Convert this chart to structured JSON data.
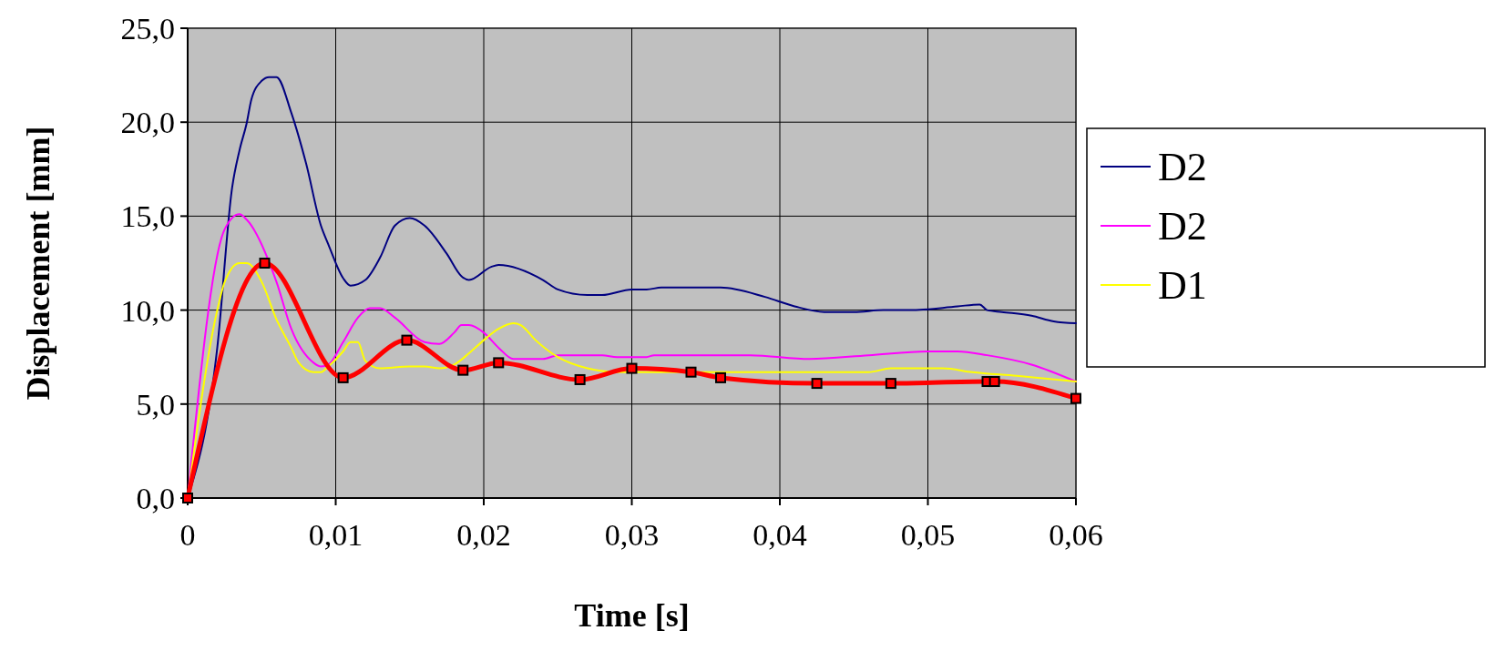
{
  "chart_data": {
    "type": "line",
    "xlabel": "Time [s]",
    "ylabel": "Displacement [mm]",
    "xlim": [
      0,
      0.06
    ],
    "xticks": [
      0,
      {
        "value": 0.01,
        "label": "0,01"
      },
      {
        "value": 0.02,
        "label": "0,02"
      },
      {
        "value": 0.03,
        "label": "0,03"
      },
      {
        "value": 0.04,
        "label": "0,04"
      },
      {
        "value": 0.05,
        "label": "0,05"
      },
      {
        "value": 0.06,
        "label": "0,06"
      }
    ],
    "ylim": [
      0,
      25
    ],
    "yticks": [
      {
        "value": 0,
        "label": "0,0"
      },
      {
        "value": 5,
        "label": "5,0"
      },
      {
        "value": 10,
        "label": "10,0"
      },
      {
        "value": 15,
        "label": "15,0"
      },
      {
        "value": 20,
        "label": "20,0"
      },
      {
        "value": 25,
        "label": "25,0"
      }
    ],
    "grid": true,
    "legend": "right",
    "marker": "none",
    "series": [
      {
        "name": "D2",
        "color": "#000080",
        "x": [
          0,
          0.002,
          0.003,
          0.0035,
          0.004,
          0.0043,
          0.005,
          0.0055,
          0.006,
          0.007,
          0.008,
          0.009,
          0.0095,
          0.0105,
          0.011,
          0.012,
          0.013,
          0.014,
          0.015,
          0.016,
          0.0175,
          0.0185,
          0.019,
          0.0205,
          0.021,
          0.024,
          0.025,
          0.027,
          0.028,
          0.03,
          0.031,
          0.032,
          0.036,
          0.039,
          0.041,
          0.043,
          0.045,
          0.047,
          0.049,
          0.052,
          0.0535,
          0.054,
          0.055,
          0.057,
          0.0585,
          0.06
        ],
        "values": [
          0,
          8,
          16.5,
          18.5,
          20,
          21.2,
          22.2,
          22.4,
          22.4,
          20.5,
          17.8,
          14.5,
          13.5,
          11.7,
          11.3,
          11.6,
          12.8,
          14.5,
          14.9,
          14.5,
          13,
          11.8,
          11.6,
          12.3,
          12.4,
          11.6,
          11.1,
          10.8,
          10.8,
          11.1,
          11.1,
          11.2,
          11.2,
          10.7,
          10.2,
          9.9,
          9.9,
          10,
          10,
          10.2,
          10.3,
          10,
          9.9,
          9.7,
          9.4,
          9.3
        ]
      },
      {
        "name": "D2",
        "color": "#ff00ff",
        "x": [
          0,
          0.0025,
          0.0035,
          0.004,
          0.006,
          0.007,
          0.0085,
          0.009,
          0.0095,
          0.0105,
          0.0115,
          0.0123,
          0.013,
          0.014,
          0.016,
          0.017,
          0.018,
          0.0185,
          0.019,
          0.02,
          0.021,
          0.022,
          0.024,
          0.025,
          0.028,
          0.029,
          0.031,
          0.0315,
          0.038,
          0.042,
          0.046,
          0.05,
          0.052,
          0.054,
          0.057,
          0.06
        ],
        "values": [
          0,
          14.3,
          15.1,
          14.8,
          11.5,
          9,
          7.2,
          7,
          7.1,
          8.3,
          9.6,
          10.1,
          10.1,
          9.6,
          8.3,
          8.2,
          8.8,
          9.2,
          9.2,
          8.8,
          8,
          7.4,
          7.4,
          7.6,
          7.6,
          7.5,
          7.5,
          7.6,
          7.6,
          7.4,
          7.6,
          7.8,
          7.8,
          7.6,
          7.1,
          6.2
        ]
      },
      {
        "name": "D1",
        "color": "#ffff00",
        "x": [
          0,
          0.002,
          0.0025,
          0.0035,
          0.004,
          0.005,
          0.006,
          0.007,
          0.0075,
          0.0085,
          0.009,
          0.0095,
          0.0105,
          0.011,
          0.0115,
          0.012,
          0.013,
          0.015,
          0.016,
          0.017,
          0.018,
          0.019,
          0.02,
          0.021,
          0.022,
          0.0225,
          0.0235,
          0.025,
          0.027,
          0.029,
          0.036,
          0.046,
          0.0475,
          0.051,
          0.053,
          0.056,
          0.06
        ],
        "values": [
          0,
          10,
          11.5,
          12.5,
          12.5,
          11.5,
          9.5,
          8,
          7.2,
          6.7,
          6.7,
          7,
          7.8,
          8.3,
          8.3,
          7.3,
          6.9,
          7,
          7,
          6.9,
          7.1,
          7.7,
          8.4,
          9,
          9.3,
          9.2,
          8.4,
          7.5,
          6.9,
          6.7,
          6.7,
          6.7,
          6.9,
          6.9,
          6.7,
          6.5,
          6.2
        ]
      },
      {
        "color": "#ff0000",
        "marker": "square",
        "x": [
          0,
          0.0052,
          0.0105,
          0.0148,
          0.0186,
          0.021,
          0.0265,
          0.03,
          0.034,
          0.036,
          0.0425,
          0.0475,
          0.054,
          0.0545,
          0.06
        ],
        "values": [
          0,
          12.5,
          6.4,
          8.4,
          6.8,
          7.2,
          6.3,
          6.9,
          6.7,
          6.4,
          6.1,
          6.1,
          6.2,
          6.2,
          5.3
        ]
      }
    ]
  }
}
